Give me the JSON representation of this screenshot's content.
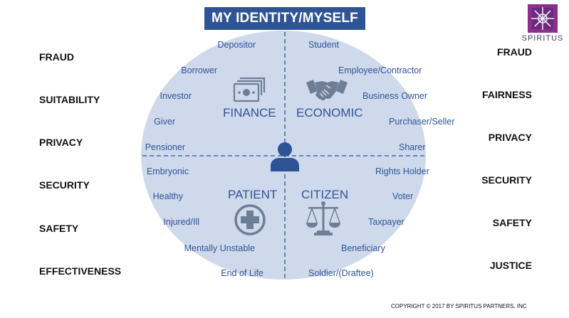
{
  "title": "MY IDENTITY/MYSELF",
  "logo": {
    "name": "SPIRITUS",
    "colors": [
      "#8a2f8a",
      "#5a2d7a"
    ]
  },
  "left_column": [
    "FRAUD",
    "SUITABILITY",
    "PRIVACY",
    "SECURITY",
    "SAFETY",
    "EFFECTIVENESS"
  ],
  "right_column": [
    "FRAUD",
    "FAIRNESS",
    "PRIVACY",
    "SECURITY",
    "SAFETY",
    "JUSTICE"
  ],
  "quadrants": {
    "finance": {
      "label": "FINANCE",
      "icon": "money-bill-icon"
    },
    "economic": {
      "label": "ECONOMIC",
      "icon": "handshake-icon"
    },
    "patient": {
      "label": "PATIENT",
      "icon": "medical-cross-icon"
    },
    "citizen": {
      "label": "CITIZEN",
      "icon": "scales-of-justice-icon"
    },
    "center_icon": "person-icon"
  },
  "roles_left": [
    "Depositor",
    "Borrower",
    "Investor",
    "Giver",
    "Pensioner",
    "Embryonic",
    "Healthy",
    "Injured/Ill",
    "Mentally Unstable",
    "End of Life"
  ],
  "roles_right": [
    "Student",
    "Employee/Contractor",
    "Business Owner",
    "Purchaser/Seller",
    "Sharer",
    "Rights Holder",
    "Voter",
    "Taxpayer",
    "Beneficiary",
    "Soldier/(Draftee)"
  ],
  "copyright": "COPYRIGHT © 2017 BY SPIRITUS PARTNERS, INC",
  "colors": {
    "title_bg": "#2e5496",
    "circle_fill": "#cfd9ec",
    "accent": "#2e5496",
    "icon": "#6e7e95"
  }
}
